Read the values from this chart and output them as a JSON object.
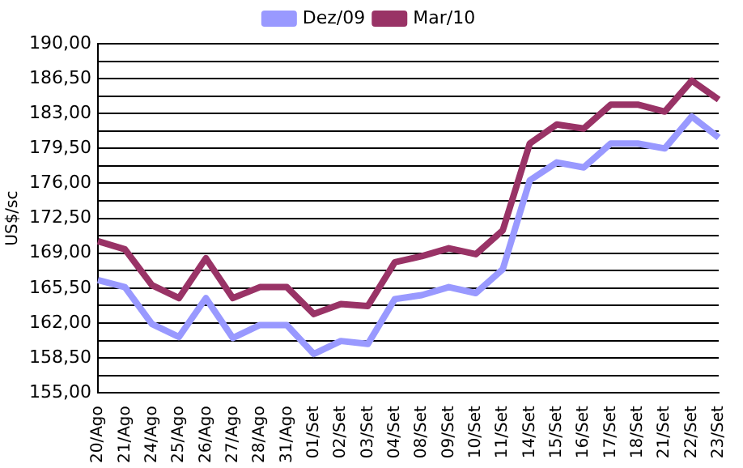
{
  "chart_data": {
    "type": "line",
    "ylabel": "US$/sc",
    "categories": [
      "20/Ago",
      "21/Ago",
      "24/Ago",
      "25/Ago",
      "26/Ago",
      "27/Ago",
      "28/Ago",
      "31/Ago",
      "01/Set",
      "02/Set",
      "03/Set",
      "04/Set",
      "08/Set",
      "09/Set",
      "10/Set",
      "11/Set",
      "14/Set",
      "15/Set",
      "16/Set",
      "17/Set",
      "18/Set",
      "21/Set",
      "22/Set",
      "23/Set"
    ],
    "series": [
      {
        "name": "Dez/09",
        "color": "#9999ff",
        "values": [
          166.3,
          165.6,
          161.9,
          160.6,
          164.5,
          160.5,
          161.8,
          161.8,
          158.9,
          160.2,
          159.9,
          164.4,
          164.8,
          165.6,
          165.0,
          167.4,
          176.3,
          178.1,
          177.6,
          180.0,
          180.0,
          179.5,
          182.7,
          180.6
        ]
      },
      {
        "name": "Mar/10",
        "color": "#993366",
        "values": [
          170.2,
          169.4,
          165.8,
          164.5,
          168.5,
          164.5,
          165.6,
          165.6,
          162.9,
          163.9,
          163.7,
          168.1,
          168.7,
          169.5,
          168.9,
          171.3,
          180.0,
          181.9,
          181.5,
          183.9,
          183.9,
          183.2,
          186.3,
          184.4
        ]
      }
    ],
    "ylim": [
      155,
      190
    ],
    "yticks": [
      {
        "value": 155,
        "label": "155,00"
      },
      {
        "value": 156.75,
        "label": null
      },
      {
        "value": 158.5,
        "label": "158,50"
      },
      {
        "value": 160.25,
        "label": null
      },
      {
        "value": 162,
        "label": "162,00"
      },
      {
        "value": 163.75,
        "label": null
      },
      {
        "value": 165.5,
        "label": "165,50"
      },
      {
        "value": 167.25,
        "label": null
      },
      {
        "value": 169,
        "label": "169,00"
      },
      {
        "value": 170.75,
        "label": null
      },
      {
        "value": 172.5,
        "label": "172,50"
      },
      {
        "value": 174.25,
        "label": null
      },
      {
        "value": 176,
        "label": "176,00"
      },
      {
        "value": 177.75,
        "label": null
      },
      {
        "value": 179.5,
        "label": "179,50"
      },
      {
        "value": 181.25,
        "label": null
      },
      {
        "value": 183,
        "label": "183,00"
      },
      {
        "value": 184.75,
        "label": null
      },
      {
        "value": 186.5,
        "label": "186,50"
      },
      {
        "value": 188.25,
        "label": null
      },
      {
        "value": 190,
        "label": "190,00"
      }
    ],
    "grid": "y",
    "legend": "top",
    "marker": "none",
    "line_style": "solid"
  }
}
